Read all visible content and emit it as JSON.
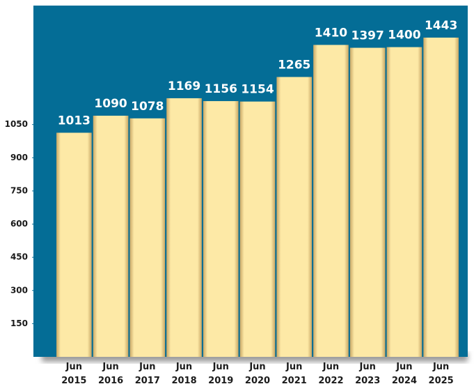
{
  "chart_data": {
    "type": "bar",
    "categories": [
      "Jun 2015",
      "Jun 2016",
      "Jun 2017",
      "Jun 2018",
      "Jun 2019",
      "Jun 2020",
      "Jun 2021",
      "Jun 2022",
      "Jun 2023",
      "Jun 2024",
      "Jun 2025"
    ],
    "values": [
      1013,
      1090,
      1078,
      1169,
      1156,
      1154,
      1265,
      1410,
      1397,
      1400,
      1443
    ],
    "color": "#fde9a6",
    "background": "#046d96",
    "ylim": [
      0,
      1550
    ],
    "yticks": [
      150,
      300,
      450,
      600,
      750,
      900,
      1050
    ]
  }
}
